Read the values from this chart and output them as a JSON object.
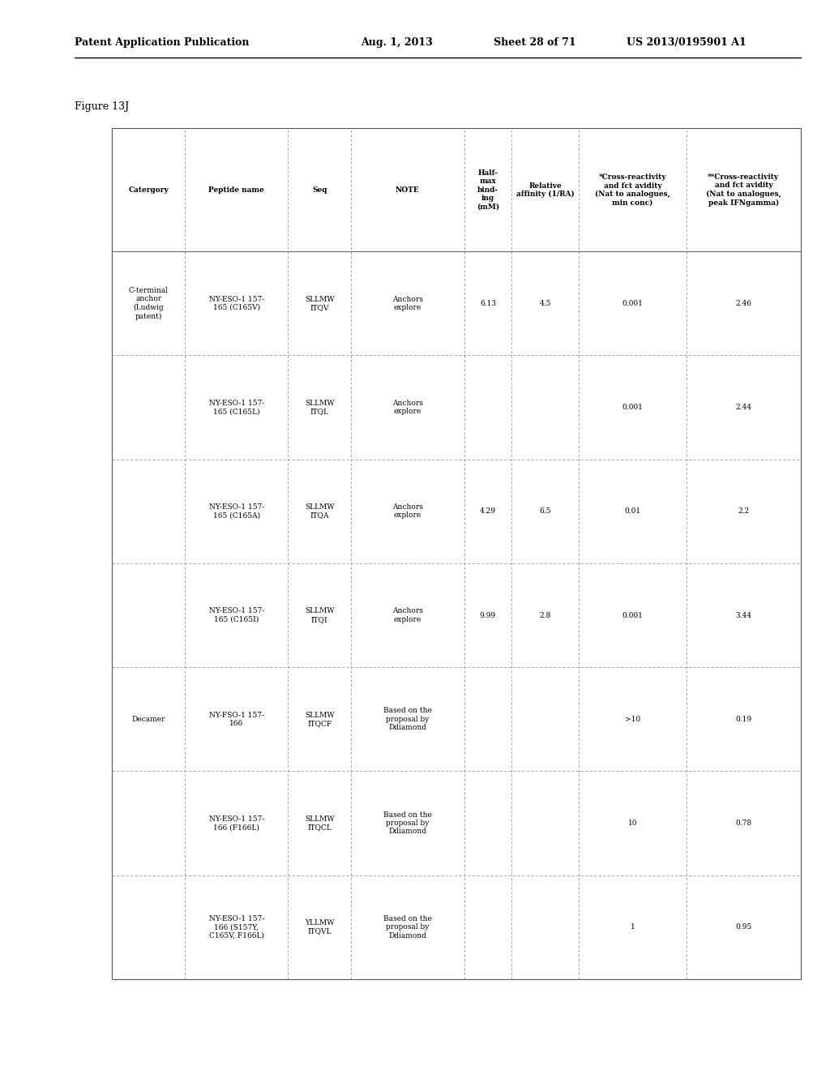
{
  "header_line1": "Patent Application Publication",
  "header_date": "Aug. 1, 2013",
  "header_sheet": "Sheet 28 of 71",
  "header_patent": "US 2013/0195901 A1",
  "figure_label": "Figure 13J",
  "col_headers": [
    "Catergory",
    "Peptide name",
    "Seq",
    "NOTE",
    "Half-\nmax\nbind-\ning\n(mM)",
    "Relative\naffinity (1/RA)",
    "*Cross-reactivity\nand fct avidity\n(Nat to analogues,\nmin conc)",
    "**Cross-reactivity\nand fct avidity\n(Nat to analogues,\npeak IFNgamma)"
  ],
  "rows": [
    {
      "category": "C-terminal\nanchor\n(Ludwig\npatent)",
      "peptide_name": "NY-ESO-1 157-\n165 (C165V)",
      "seq": "SLLMW\nITQV",
      "note": "Anchors\nexplore",
      "half_max": "6.13",
      "rel_affinity": "4.5",
      "cross_react_min": "0.001",
      "cross_react_peak": "2.46"
    },
    {
      "category": "",
      "peptide_name": "NY-ESO-1 157-\n165 (C165L)",
      "seq": "SLLMW\nITQL",
      "note": "Anchors\nexplore",
      "half_max": "",
      "rel_affinity": "",
      "cross_react_min": "0.001",
      "cross_react_peak": "2.44"
    },
    {
      "category": "",
      "peptide_name": "NY-ESO-1 157-\n165 (C165A)",
      "seq": "SLLMW\nITQA",
      "note": "Anchors\nexplore",
      "half_max": "4.29",
      "rel_affinity": "6.5",
      "cross_react_min": "0.01",
      "cross_react_peak": "2.2"
    },
    {
      "category": "",
      "peptide_name": "NY-ESO-1 157-\n165 (C165I)",
      "seq": "SLLMW\nITQI",
      "note": "Anchors\nexplore",
      "half_max": "9.99",
      "rel_affinity": "2.8",
      "cross_react_min": "0.001",
      "cross_react_peak": "3.44"
    },
    {
      "category": "Decamer",
      "peptide_name": "NY-FSO-1 157-\n166",
      "seq": "SLLMW\nITQCF",
      "note": "Based on the\nproposal by\nDdiamond",
      "half_max": "",
      "rel_affinity": "",
      "cross_react_min": ">10",
      "cross_react_peak": "0.19"
    },
    {
      "category": "",
      "peptide_name": "NY-ESO-1 157-\n166 (F166L)",
      "seq": "SLLMW\nITQCL",
      "note": "Based on the\nproposal by\nDdiamond",
      "half_max": "",
      "rel_affinity": "",
      "cross_react_min": "10",
      "cross_react_peak": "0.78"
    },
    {
      "category": "",
      "peptide_name": "NY-ESO-1 157-\n166 (S157Y,\nC165V, F166L)",
      "seq": "YLLMW\nITQVL",
      "note": "Based on the\nproposal by\nDdiamond",
      "half_max": "",
      "rel_affinity": "",
      "cross_react_min": "1",
      "cross_react_peak": "0.95"
    }
  ],
  "background_color": "#ffffff",
  "text_color": "#000000",
  "line_color": "#888888",
  "font_size_header": 7,
  "font_size_body": 7,
  "font_size_title": 9
}
